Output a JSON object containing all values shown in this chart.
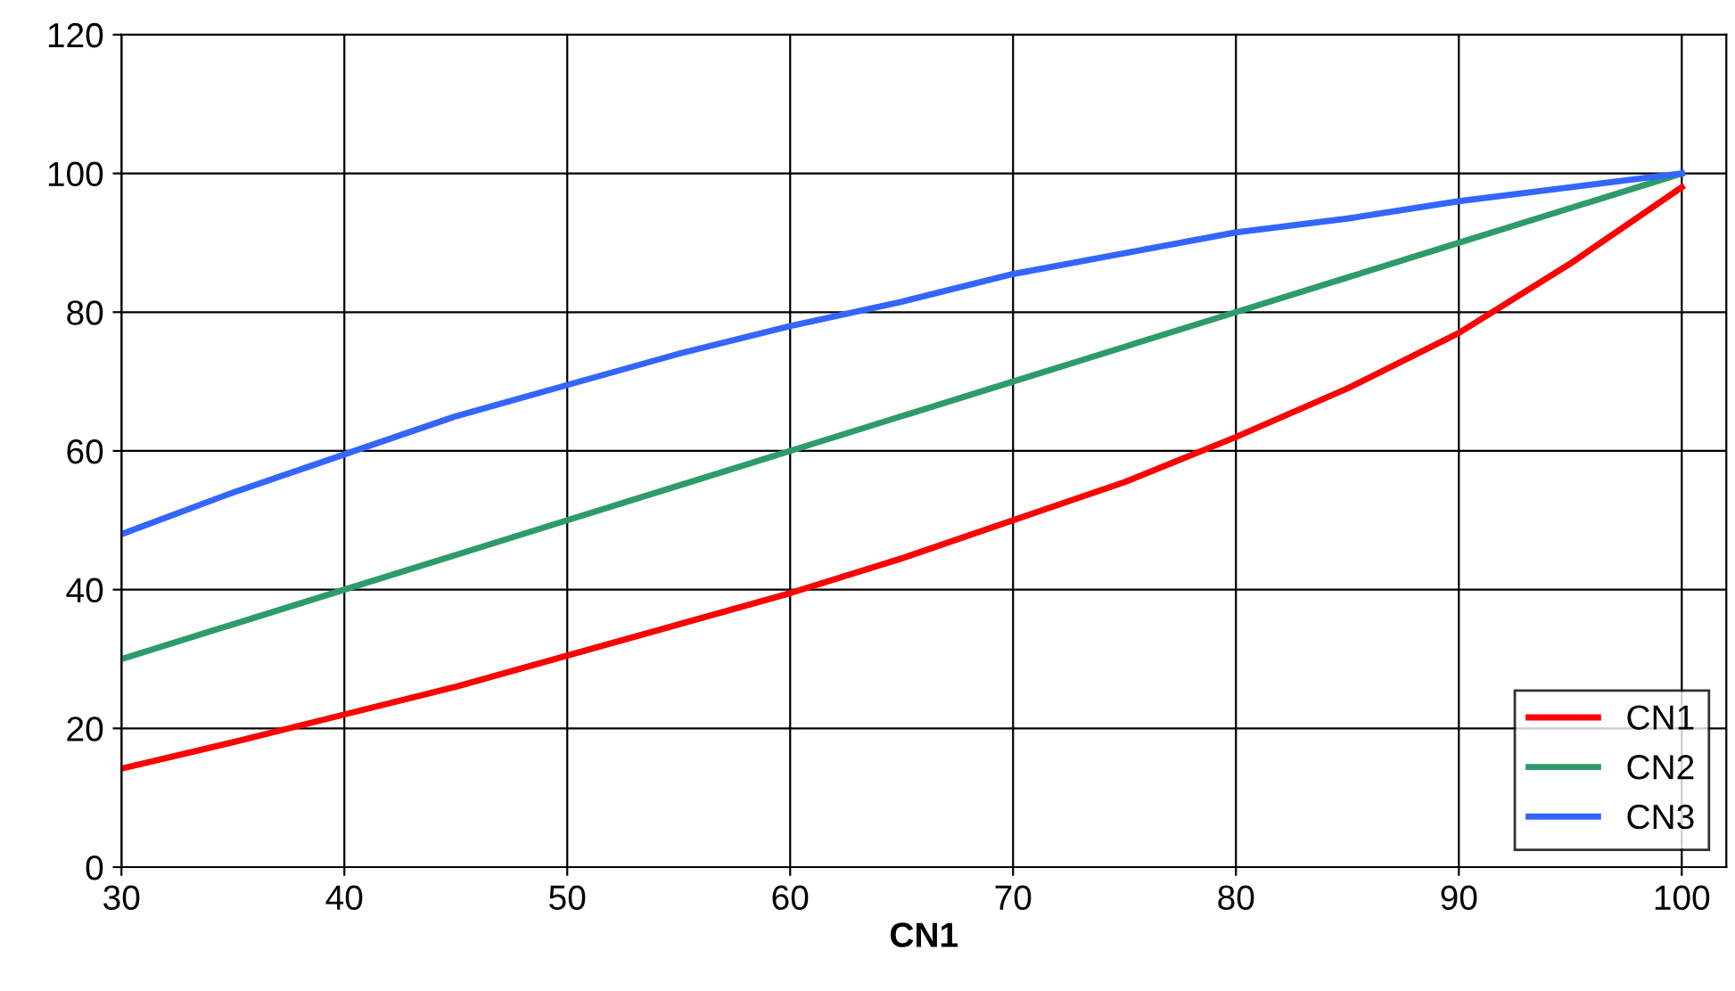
{
  "chart_data": {
    "type": "line",
    "xlabel": "CN1",
    "x": [
      30,
      35,
      40,
      45,
      50,
      55,
      60,
      65,
      70,
      75,
      80,
      85,
      90,
      95,
      100
    ],
    "series": [
      {
        "name": "CN1",
        "color": "#ff0000",
        "values": [
          14.2,
          18,
          22,
          26,
          30.5,
          35,
          39.5,
          44.5,
          50,
          55.5,
          62,
          69,
          77,
          87,
          98
        ]
      },
      {
        "name": "CN2",
        "color": "#2e9b6a",
        "values": [
          30,
          35,
          40,
          45,
          50,
          55,
          60,
          65,
          70,
          75,
          80,
          85,
          90,
          95,
          100
        ]
      },
      {
        "name": "CN3",
        "color": "#3366ff",
        "values": [
          48,
          54,
          59.5,
          65,
          69.5,
          74,
          78,
          81.5,
          85.5,
          88.5,
          91.5,
          93.5,
          96,
          98,
          100
        ]
      }
    ],
    "xlim": [
      30,
      102
    ],
    "xticks": [
      30,
      40,
      50,
      60,
      70,
      80,
      90,
      100
    ],
    "ylim": [
      0,
      120
    ],
    "yticks": [
      0,
      20,
      40,
      60,
      80,
      100,
      120
    ],
    "grid": true,
    "legend": "bottom right",
    "marker": "none",
    "line_style": "solid"
  }
}
